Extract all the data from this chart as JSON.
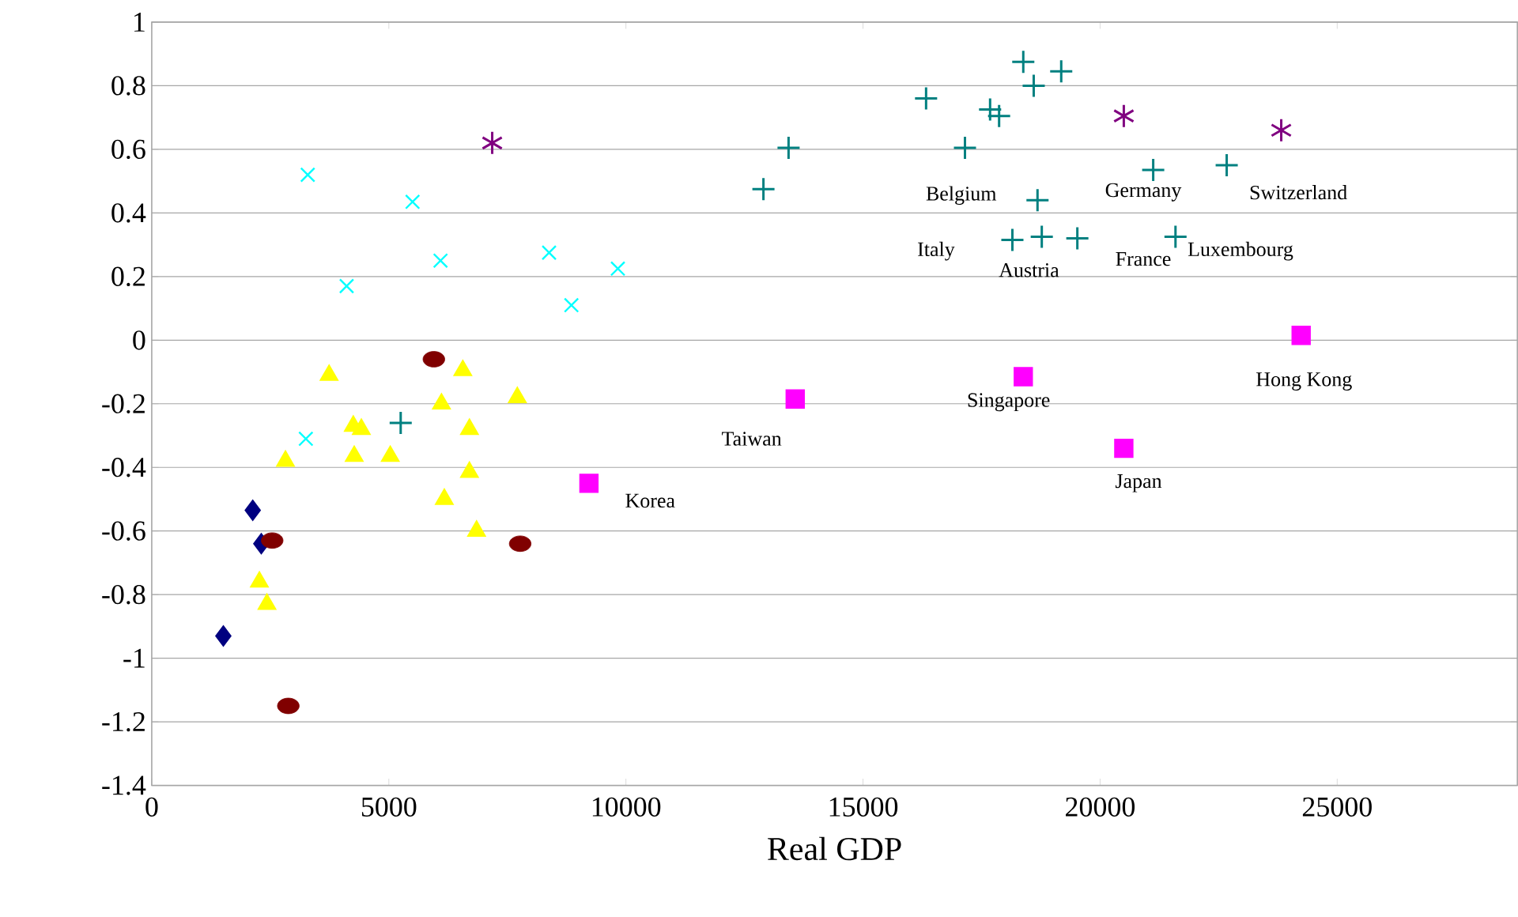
{
  "chart_data": {
    "type": "scatter",
    "xlabel": "Real GDP",
    "xlim": [
      0,
      28800
    ],
    "ylim": [
      -1.4,
      1
    ],
    "xticks": [
      0,
      5000,
      10000,
      15000,
      20000,
      25000
    ],
    "yticks": [
      -1.4,
      -1.2,
      -1,
      -0.8,
      -0.6,
      -0.4,
      -0.2,
      0,
      0.2,
      0.4,
      0.6,
      0.8,
      1
    ],
    "grid": "y",
    "series": [
      {
        "color": "#000080",
        "marker": "diamond",
        "x": [
          1510,
          2130,
          2310
        ],
        "values": [
          -0.93,
          -0.535,
          -0.64
        ]
      },
      {
        "color": "#800000",
        "marker": "circle",
        "x": [
          5950,
          2540,
          7770,
          2880
        ],
        "values": [
          -0.06,
          -0.63,
          -0.64,
          -1.15
        ]
      },
      {
        "color": "#ffff00",
        "marker": "triangle",
        "x": [
          3740,
          2820,
          4250,
          4420,
          4270,
          5030,
          6110,
          6560,
          6700,
          6700,
          6170,
          6850,
          7710,
          2270,
          2430
        ],
        "values": [
          -0.11,
          -0.38,
          -0.27,
          -0.28,
          -0.365,
          -0.365,
          -0.2,
          -0.095,
          -0.28,
          -0.415,
          -0.5,
          -0.6,
          -0.18,
          -0.76,
          -0.83
        ]
      },
      {
        "color": "#00ffff",
        "marker": "cross",
        "x": [
          3290,
          4110,
          5500,
          6090,
          8380,
          8850,
          9830,
          3250
        ],
        "values": [
          0.52,
          0.17,
          0.435,
          0.25,
          0.275,
          0.11,
          0.225,
          -0.31
        ]
      },
      {
        "color": "#800080",
        "marker": "star",
        "x": [
          7180,
          20500,
          23820
        ],
        "values": [
          0.62,
          0.705,
          0.66
        ]
      },
      {
        "color": "#008080",
        "x": [
          5250,
          12900,
          13430,
          16330,
          17150,
          17680,
          17870,
          18380,
          18600,
          19180,
          18680,
          18150,
          18770,
          19520,
          21120,
          21590,
          22670
        ],
        "values": [
          -0.26,
          0.475,
          0.605,
          0.76,
          0.605,
          0.725,
          0.705,
          0.875,
          0.8,
          0.845,
          0.44,
          0.315,
          0.325,
          0.32,
          0.535,
          0.325,
          0.55
        ]
      },
      {
        "color": "#ff00ff",
        "marker": "square",
        "x": [
          9220,
          13570,
          18380,
          20500,
          24240
        ],
        "values": [
          -0.45,
          -0.185,
          -0.115,
          -0.34,
          0.015
        ]
      }
    ],
    "annotations": [
      "Belgium",
      "Germany",
      "Switzerland",
      "Italy",
      "Austria",
      "France",
      "Luxembourg",
      "Hong Kong",
      "Singapore",
      "Taiwan",
      "Japan",
      "Korea"
    ]
  }
}
